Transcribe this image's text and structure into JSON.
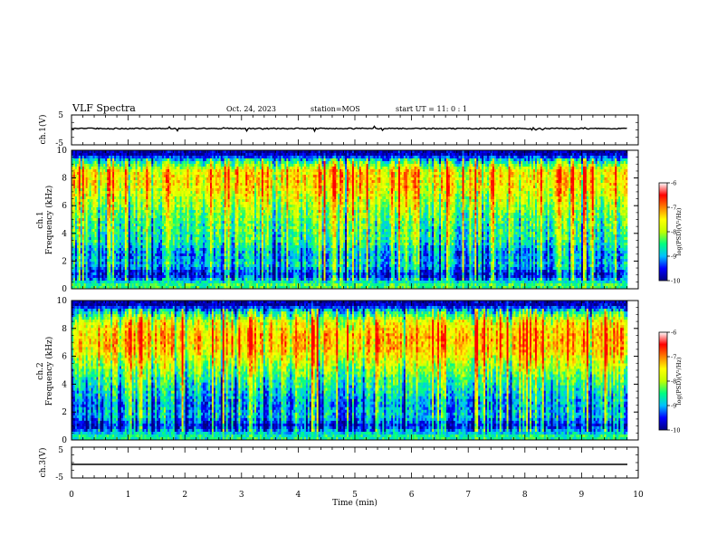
{
  "header": {
    "title": "VLF Spectra",
    "date": "Oct. 24, 2023",
    "station": "station=MOS",
    "start_ut": "start  UT =   11: 0  : 1"
  },
  "chart_data": [
    {
      "type": "line",
      "panel": "ch1-waveform",
      "ylabel": "ch.1(V)",
      "ylim": [
        -5,
        5
      ],
      "yticks": [
        "5",
        "-5"
      ],
      "series": [
        {
          "values_note": "",
          "level": 0
        }
      ]
    },
    {
      "type": "heatmap",
      "panel": "ch1-spectrogram",
      "ylabel": "ch.1\nFrequency (kHz)",
      "ylabel_line1": "ch.1",
      "ylabel_line2": "Frequency (kHz)",
      "ylim": [
        0,
        10
      ],
      "yticks": [
        "0",
        "2",
        "4",
        "6",
        "8",
        "10"
      ],
      "xlim": [
        0,
        10
      ],
      "colorbar": {
        "range": [
          -10,
          -6
        ],
        "ticks": [
          "-6",
          "-7",
          "-8",
          "-9",
          "-10"
        ],
        "label": "log(PSD)(V²/Hz)"
      },
      "profile": [
        [
          0.3,
          -8.2
        ],
        [
          1.0,
          -9.6
        ],
        [
          1.7,
          -8.8
        ],
        [
          2.5,
          -9.0
        ],
        [
          3.5,
          -8.4
        ],
        [
          4.5,
          -8.3
        ],
        [
          5.5,
          -8.0
        ],
        [
          6.5,
          -7.6
        ],
        [
          7.5,
          -7.2
        ],
        [
          8.5,
          -7.2
        ],
        [
          9.2,
          -8.5
        ],
        [
          9.7,
          -9.8
        ]
      ]
    },
    {
      "type": "heatmap",
      "panel": "ch2-spectrogram",
      "ylabel_line1": "ch.2",
      "ylabel_line2": "Frequency (kHz)",
      "ylim": [
        0,
        10
      ],
      "yticks": [
        "0",
        "2",
        "4",
        "6",
        "8",
        "10"
      ],
      "xlim": [
        0,
        10
      ],
      "colorbar": {
        "range": [
          -10,
          -6
        ],
        "ticks": [
          "-6",
          "-7",
          "-8",
          "-9",
          "-10"
        ],
        "label": "log(PSD)(V²/Hz)"
      },
      "profile": [
        [
          0.3,
          -8.4
        ],
        [
          1.0,
          -9.6
        ],
        [
          1.7,
          -8.8
        ],
        [
          2.5,
          -9.0
        ],
        [
          3.5,
          -8.6
        ],
        [
          4.5,
          -8.2
        ],
        [
          5.5,
          -7.6
        ],
        [
          6.5,
          -7.0
        ],
        [
          7.5,
          -6.9
        ],
        [
          8.5,
          -7.4
        ],
        [
          9.2,
          -8.6
        ],
        [
          9.7,
          -9.8
        ]
      ]
    },
    {
      "type": "line",
      "panel": "ch3-waveform",
      "ylabel": "ch.3(V)",
      "ylim": [
        -5,
        5
      ],
      "yticks": [
        "5",
        "-5"
      ],
      "series": [
        {
          "level": 0
        }
      ]
    }
  ],
  "xaxis": {
    "label": "Time  (min)",
    "ticks": [
      "0",
      "1",
      "2",
      "3",
      "4",
      "5",
      "6",
      "7",
      "8",
      "9",
      "10"
    ],
    "range": [
      0,
      10
    ]
  },
  "colors": {
    "colormap": [
      "#000080",
      "#0000ff",
      "#00c0ff",
      "#00ff80",
      "#c0ff00",
      "#ffff00",
      "#ff8000",
      "#ff0000",
      "#ffffff"
    ]
  }
}
